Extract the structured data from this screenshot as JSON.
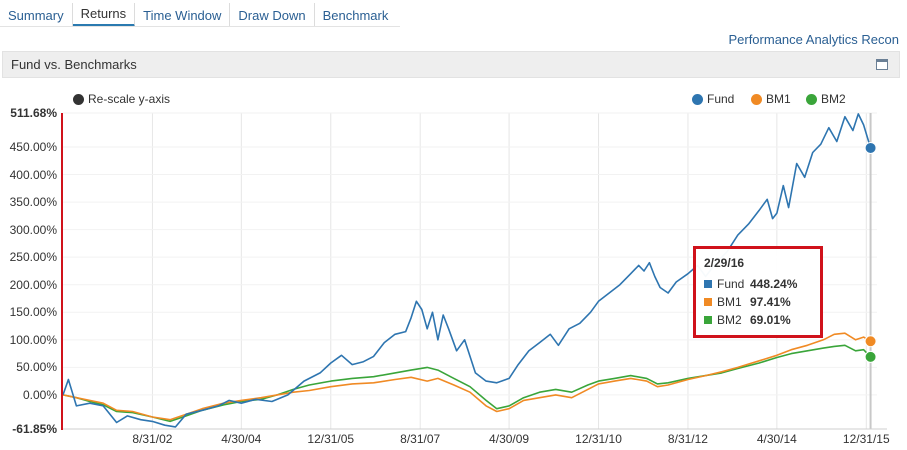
{
  "tabs": [
    {
      "label": "Summary"
    },
    {
      "label": "Returns"
    },
    {
      "label": "Time Window"
    },
    {
      "label": "Draw Down"
    },
    {
      "label": "Benchmark"
    }
  ],
  "active_tab": "Returns",
  "header_link": "Performance Analytics Recon",
  "panel": {
    "title": "Fund vs. Benchmarks"
  },
  "rescale_label": "Re-scale y-axis",
  "colors": {
    "fund": "#2e75b0",
    "bm1": "#f08a24",
    "bm2": "#3aa53a",
    "accent": "#d0121b"
  },
  "tooltip": {
    "date": "2/29/16",
    "rows": [
      {
        "name": "Fund",
        "value": "448.24%"
      },
      {
        "name": "BM1",
        "value": "97.41%"
      },
      {
        "name": "BM2",
        "value": "69.01%"
      }
    ]
  },
  "chart_data": {
    "type": "line",
    "title": "",
    "xlabel": "",
    "ylabel": "",
    "ylim": [
      -61.85,
      511.68
    ],
    "y_tick_labels": [
      "511.68%",
      "450.00%",
      "400.00%",
      "350.00%",
      "300.00%",
      "250.00%",
      "200.00%",
      "150.00%",
      "100.00%",
      "50.00%",
      "0.00%",
      "-61.85%"
    ],
    "y_tick_values": [
      511.68,
      450,
      400,
      350,
      300,
      250,
      200,
      150,
      100,
      50,
      0,
      -61.85
    ],
    "x_tick_labels": [
      "8/31/02",
      "4/30/04",
      "12/31/05",
      "8/31/07",
      "4/30/09",
      "12/31/10",
      "8/31/12",
      "4/30/14",
      "12/31/15"
    ],
    "x_tick_values": [
      2002.67,
      2004.33,
      2006.0,
      2007.67,
      2009.33,
      2011.0,
      2012.67,
      2014.33,
      2016.0
    ],
    "grid": true,
    "legend": "top-right",
    "series": [
      {
        "name": "Fund",
        "points": [
          [
            2001.0,
            0
          ],
          [
            2001.1,
            28
          ],
          [
            2001.25,
            -20
          ],
          [
            2001.5,
            -15
          ],
          [
            2001.75,
            -20
          ],
          [
            2002.0,
            -50
          ],
          [
            2002.2,
            -38
          ],
          [
            2002.45,
            -45
          ],
          [
            2002.67,
            -48
          ],
          [
            2002.9,
            -55
          ],
          [
            2003.1,
            -58
          ],
          [
            2003.3,
            -35
          ],
          [
            2003.6,
            -28
          ],
          [
            2003.9,
            -20
          ],
          [
            2004.1,
            -10
          ],
          [
            2004.33,
            -15
          ],
          [
            2004.6,
            -8
          ],
          [
            2004.9,
            -12
          ],
          [
            2005.2,
            0
          ],
          [
            2005.5,
            25
          ],
          [
            2005.8,
            40
          ],
          [
            2006.0,
            58
          ],
          [
            2006.2,
            72
          ],
          [
            2006.4,
            55
          ],
          [
            2006.6,
            60
          ],
          [
            2006.8,
            70
          ],
          [
            2007.0,
            95
          ],
          [
            2007.2,
            110
          ],
          [
            2007.4,
            115
          ],
          [
            2007.5,
            140
          ],
          [
            2007.6,
            170
          ],
          [
            2007.7,
            155
          ],
          [
            2007.8,
            120
          ],
          [
            2007.9,
            150
          ],
          [
            2008.0,
            100
          ],
          [
            2008.1,
            145
          ],
          [
            2008.2,
            120
          ],
          [
            2008.35,
            80
          ],
          [
            2008.5,
            100
          ],
          [
            2008.7,
            40
          ],
          [
            2008.9,
            25
          ],
          [
            2009.1,
            22
          ],
          [
            2009.33,
            30
          ],
          [
            2009.5,
            55
          ],
          [
            2009.7,
            80
          ],
          [
            2009.9,
            95
          ],
          [
            2010.1,
            110
          ],
          [
            2010.25,
            90
          ],
          [
            2010.45,
            120
          ],
          [
            2010.65,
            130
          ],
          [
            2010.85,
            150
          ],
          [
            2011.0,
            170
          ],
          [
            2011.2,
            185
          ],
          [
            2011.4,
            200
          ],
          [
            2011.6,
            220
          ],
          [
            2011.75,
            235
          ],
          [
            2011.85,
            225
          ],
          [
            2011.95,
            240
          ],
          [
            2012.05,
            215
          ],
          [
            2012.15,
            195
          ],
          [
            2012.3,
            185
          ],
          [
            2012.45,
            205
          ],
          [
            2012.67,
            220
          ],
          [
            2012.85,
            235
          ],
          [
            2013.0,
            215
          ],
          [
            2013.2,
            240
          ],
          [
            2013.4,
            260
          ],
          [
            2013.6,
            290
          ],
          [
            2013.8,
            310
          ],
          [
            2014.0,
            335
          ],
          [
            2014.15,
            355
          ],
          [
            2014.25,
            320
          ],
          [
            2014.33,
            330
          ],
          [
            2014.45,
            380
          ],
          [
            2014.55,
            340
          ],
          [
            2014.7,
            420
          ],
          [
            2014.85,
            395
          ],
          [
            2015.0,
            440
          ],
          [
            2015.15,
            455
          ],
          [
            2015.3,
            485
          ],
          [
            2015.45,
            460
          ],
          [
            2015.6,
            505
          ],
          [
            2015.75,
            480
          ],
          [
            2015.85,
            510
          ],
          [
            2015.95,
            490
          ],
          [
            2016.08,
            448.24
          ]
        ]
      },
      {
        "name": "BM1",
        "points": [
          [
            2001.0,
            0
          ],
          [
            2001.25,
            -5
          ],
          [
            2001.5,
            -10
          ],
          [
            2001.75,
            -15
          ],
          [
            2002.0,
            -28
          ],
          [
            2002.3,
            -30
          ],
          [
            2002.67,
            -40
          ],
          [
            2003.0,
            -45
          ],
          [
            2003.3,
            -35
          ],
          [
            2003.6,
            -25
          ],
          [
            2004.0,
            -15
          ],
          [
            2004.33,
            -10
          ],
          [
            2004.7,
            -5
          ],
          [
            2005.0,
            0
          ],
          [
            2005.3,
            5
          ],
          [
            2005.6,
            8
          ],
          [
            2006.0,
            15
          ],
          [
            2006.4,
            20
          ],
          [
            2006.8,
            22
          ],
          [
            2007.2,
            28
          ],
          [
            2007.5,
            32
          ],
          [
            2007.8,
            25
          ],
          [
            2008.0,
            30
          ],
          [
            2008.3,
            18
          ],
          [
            2008.6,
            5
          ],
          [
            2008.9,
            -20
          ],
          [
            2009.1,
            -30
          ],
          [
            2009.33,
            -25
          ],
          [
            2009.6,
            -10
          ],
          [
            2009.9,
            -5
          ],
          [
            2010.2,
            0
          ],
          [
            2010.5,
            -5
          ],
          [
            2010.8,
            10
          ],
          [
            2011.0,
            20
          ],
          [
            2011.3,
            25
          ],
          [
            2011.6,
            30
          ],
          [
            2011.9,
            25
          ],
          [
            2012.1,
            15
          ],
          [
            2012.3,
            18
          ],
          [
            2012.67,
            28
          ],
          [
            2013.0,
            35
          ],
          [
            2013.3,
            42
          ],
          [
            2013.6,
            50
          ],
          [
            2014.0,
            62
          ],
          [
            2014.33,
            72
          ],
          [
            2014.6,
            82
          ],
          [
            2014.9,
            90
          ],
          [
            2015.2,
            100
          ],
          [
            2015.4,
            110
          ],
          [
            2015.6,
            112
          ],
          [
            2015.8,
            100
          ],
          [
            2015.95,
            105
          ],
          [
            2016.08,
            97.41
          ]
        ]
      },
      {
        "name": "BM2",
        "points": [
          [
            2001.0,
            0
          ],
          [
            2001.25,
            -5
          ],
          [
            2001.5,
            -12
          ],
          [
            2001.75,
            -18
          ],
          [
            2002.0,
            -30
          ],
          [
            2002.3,
            -32
          ],
          [
            2002.67,
            -40
          ],
          [
            2003.0,
            -48
          ],
          [
            2003.3,
            -38
          ],
          [
            2003.6,
            -28
          ],
          [
            2004.0,
            -18
          ],
          [
            2004.33,
            -12
          ],
          [
            2004.7,
            -8
          ],
          [
            2005.0,
            0
          ],
          [
            2005.3,
            10
          ],
          [
            2005.6,
            18
          ],
          [
            2006.0,
            25
          ],
          [
            2006.4,
            30
          ],
          [
            2006.8,
            33
          ],
          [
            2007.2,
            40
          ],
          [
            2007.5,
            45
          ],
          [
            2007.8,
            50
          ],
          [
            2008.0,
            45
          ],
          [
            2008.3,
            30
          ],
          [
            2008.6,
            15
          ],
          [
            2008.9,
            -10
          ],
          [
            2009.1,
            -25
          ],
          [
            2009.33,
            -20
          ],
          [
            2009.6,
            -5
          ],
          [
            2009.9,
            5
          ],
          [
            2010.2,
            10
          ],
          [
            2010.5,
            5
          ],
          [
            2010.8,
            18
          ],
          [
            2011.0,
            25
          ],
          [
            2011.3,
            30
          ],
          [
            2011.6,
            35
          ],
          [
            2011.9,
            30
          ],
          [
            2012.1,
            20
          ],
          [
            2012.3,
            22
          ],
          [
            2012.67,
            30
          ],
          [
            2013.0,
            35
          ],
          [
            2013.3,
            40
          ],
          [
            2013.6,
            48
          ],
          [
            2014.0,
            58
          ],
          [
            2014.33,
            68
          ],
          [
            2014.6,
            75
          ],
          [
            2014.9,
            80
          ],
          [
            2015.2,
            85
          ],
          [
            2015.4,
            88
          ],
          [
            2015.6,
            90
          ],
          [
            2015.8,
            80
          ],
          [
            2015.95,
            82
          ],
          [
            2016.08,
            69.01
          ]
        ]
      }
    ]
  }
}
